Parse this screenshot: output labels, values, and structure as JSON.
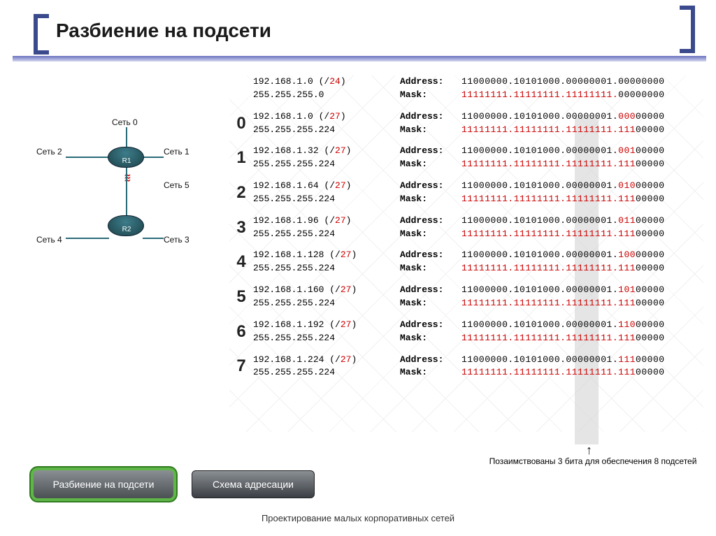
{
  "title": "Разбиение на подсети",
  "footer": "Проектирование малых корпоративных сетей",
  "buttons": {
    "b1": "Разбиение на подсети",
    "b2": "Схема адресации"
  },
  "diagram": {
    "r1": "R1",
    "r2": "R2",
    "l0": "Сеть 0",
    "l1": "Сеть 1",
    "l2": "Сеть 2",
    "l3": "Сеть 3",
    "l4": "Сеть 4",
    "l5": "Сеть 5"
  },
  "caption": "Позаимствованы 3 бита для обеспечения 8 подсетей",
  "header": {
    "ip": "192.168.1.0 (/",
    "cidr": "24",
    "ipend": ")",
    "mask": "255.255.255.0",
    "addr_l": "Address:",
    "mask_l": "Mask:",
    "addr_b": "11000000.10101000.00000001.00000000",
    "mask_b_pre": "11111111.11111111.11111111.",
    "mask_b_suf": "00000000"
  },
  "rows": [
    {
      "idx": "0",
      "ip": "192.168.1.0 (/",
      "cidr": "27",
      "mask": "255.255.255.224",
      "ab": "11000000.10101000.00000001.",
      "as": "000",
      "ae": "00000",
      "mb": "11111111.11111111.11111111.",
      "ms": "111",
      "me": "00000"
    },
    {
      "idx": "1",
      "ip": "192.168.1.32 (/",
      "cidr": "27",
      "mask": "255.255.255.224",
      "ab": "11000000.10101000.00000001.",
      "as": "001",
      "ae": "00000",
      "mb": "11111111.11111111.11111111.",
      "ms": "111",
      "me": "00000"
    },
    {
      "idx": "2",
      "ip": "192.168.1.64 (/",
      "cidr": "27",
      "mask": "255.255.255.224",
      "ab": "11000000.10101000.00000001.",
      "as": "010",
      "ae": "00000",
      "mb": "11111111.11111111.11111111.",
      "ms": "111",
      "me": "00000"
    },
    {
      "idx": "3",
      "ip": "192.168.1.96 (/",
      "cidr": "27",
      "mask": "255.255.255.224",
      "ab": "11000000.10101000.00000001.",
      "as": "011",
      "ae": "00000",
      "mb": "11111111.11111111.11111111.",
      "ms": "111",
      "me": "00000"
    },
    {
      "idx": "4",
      "ip": "192.168.1.128 (/",
      "cidr": "27",
      "mask": "255.255.255.224",
      "ab": "11000000.10101000.00000001.",
      "as": "100",
      "ae": "00000",
      "mb": "11111111.11111111.11111111.",
      "ms": "111",
      "me": "00000"
    },
    {
      "idx": "5",
      "ip": "192.168.1.160 (/",
      "cidr": "27",
      "mask": "255.255.255.224",
      "ab": "11000000.10101000.00000001.",
      "as": "101",
      "ae": "00000",
      "mb": "11111111.11111111.11111111.",
      "ms": "111",
      "me": "00000"
    },
    {
      "idx": "6",
      "ip": "192.168.1.192 (/",
      "cidr": "27",
      "mask": "255.255.255.224",
      "ab": "11000000.10101000.00000001.",
      "as": "110",
      "ae": "00000",
      "mb": "11111111.11111111.11111111.",
      "ms": "111",
      "me": "00000"
    },
    {
      "idx": "7",
      "ip": "192.168.1.224 (/",
      "cidr": "27",
      "mask": "255.255.255.224",
      "ab": "11000000.10101000.00000001.",
      "as": "111",
      "ae": "00000",
      "mb": "11111111.11111111.11111111.",
      "ms": "111",
      "me": "00000"
    }
  ]
}
